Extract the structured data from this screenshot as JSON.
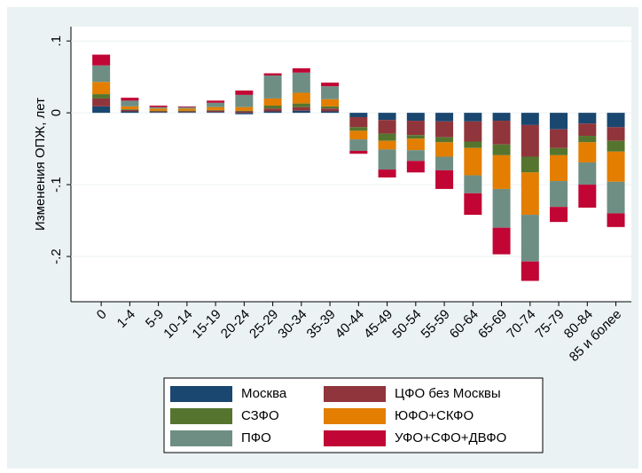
{
  "chart_data": {
    "type": "bar",
    "stacked": true,
    "ylabel": "Изменения ОПЖ, лет",
    "categories": [
      "0",
      "1-4",
      "5-9",
      "10-14",
      "15-19",
      "20-24",
      "25-29",
      "30-34",
      "35-39",
      "40-44",
      "45-49",
      "50-54",
      "55-59",
      "60-64",
      "65-69",
      "70-74",
      "75-79",
      "80-84",
      "85 и более"
    ],
    "ylim": [
      -0.263,
      0.12
    ],
    "yticks": [
      {
        "value": 0.1,
        "label": ".1"
      },
      0,
      {
        "value": -0.1,
        "label": "-.1"
      },
      {
        "value": -0.2,
        "label": "-.2"
      }
    ],
    "grid": true,
    "series": [
      {
        "name": "Москва",
        "color": "#1a476f",
        "values": [
          0.009,
          0.002,
          0.001,
          0.001,
          0.001,
          -0.002,
          0.002,
          0.003,
          0.002,
          -0.006,
          -0.01,
          -0.011,
          -0.012,
          -0.012,
          -0.011,
          -0.017,
          -0.023,
          -0.015,
          -0.02
        ]
      },
      {
        "name": "ЦФО без Москвы",
        "color": "#90353b",
        "values": [
          0.011,
          0.002,
          0.001,
          0.001,
          0.002,
          0.002,
          0.004,
          0.005,
          0.004,
          -0.014,
          -0.019,
          -0.02,
          -0.022,
          -0.028,
          -0.033,
          -0.044,
          -0.026,
          -0.017,
          -0.019
        ]
      },
      {
        "name": "СЗФО",
        "color": "#55752f",
        "values": [
          0.006,
          0.001,
          0.001,
          0.001,
          0.001,
          0.001,
          0.004,
          0.005,
          0.003,
          -0.005,
          -0.01,
          -0.005,
          -0.007,
          -0.009,
          -0.015,
          -0.022,
          -0.01,
          -0.009,
          -0.015
        ]
      },
      {
        "name": "ЮФО+СКФО",
        "color": "#e37e00",
        "values": [
          0.017,
          0.004,
          0.003,
          0.003,
          0.004,
          0.005,
          0.01,
          0.015,
          0.01,
          -0.012,
          -0.012,
          -0.016,
          -0.02,
          -0.038,
          -0.047,
          -0.059,
          -0.036,
          -0.028,
          -0.042
        ]
      },
      {
        "name": "ПФО",
        "color": "#6e8e84",
        "values": [
          0.023,
          0.008,
          0.002,
          0.002,
          0.006,
          0.017,
          0.032,
          0.028,
          0.018,
          -0.016,
          -0.028,
          -0.015,
          -0.019,
          -0.025,
          -0.054,
          -0.065,
          -0.036,
          -0.031,
          -0.044
        ]
      },
      {
        "name": "УФО+СФО+ДВФО",
        "color": "#c10534",
        "values": [
          0.015,
          0.004,
          0.002,
          0.001,
          0.003,
          0.006,
          0.003,
          0.006,
          0.005,
          -0.004,
          -0.011,
          -0.016,
          -0.026,
          -0.03,
          -0.037,
          -0.027,
          -0.021,
          -0.032,
          -0.019
        ]
      }
    ]
  }
}
